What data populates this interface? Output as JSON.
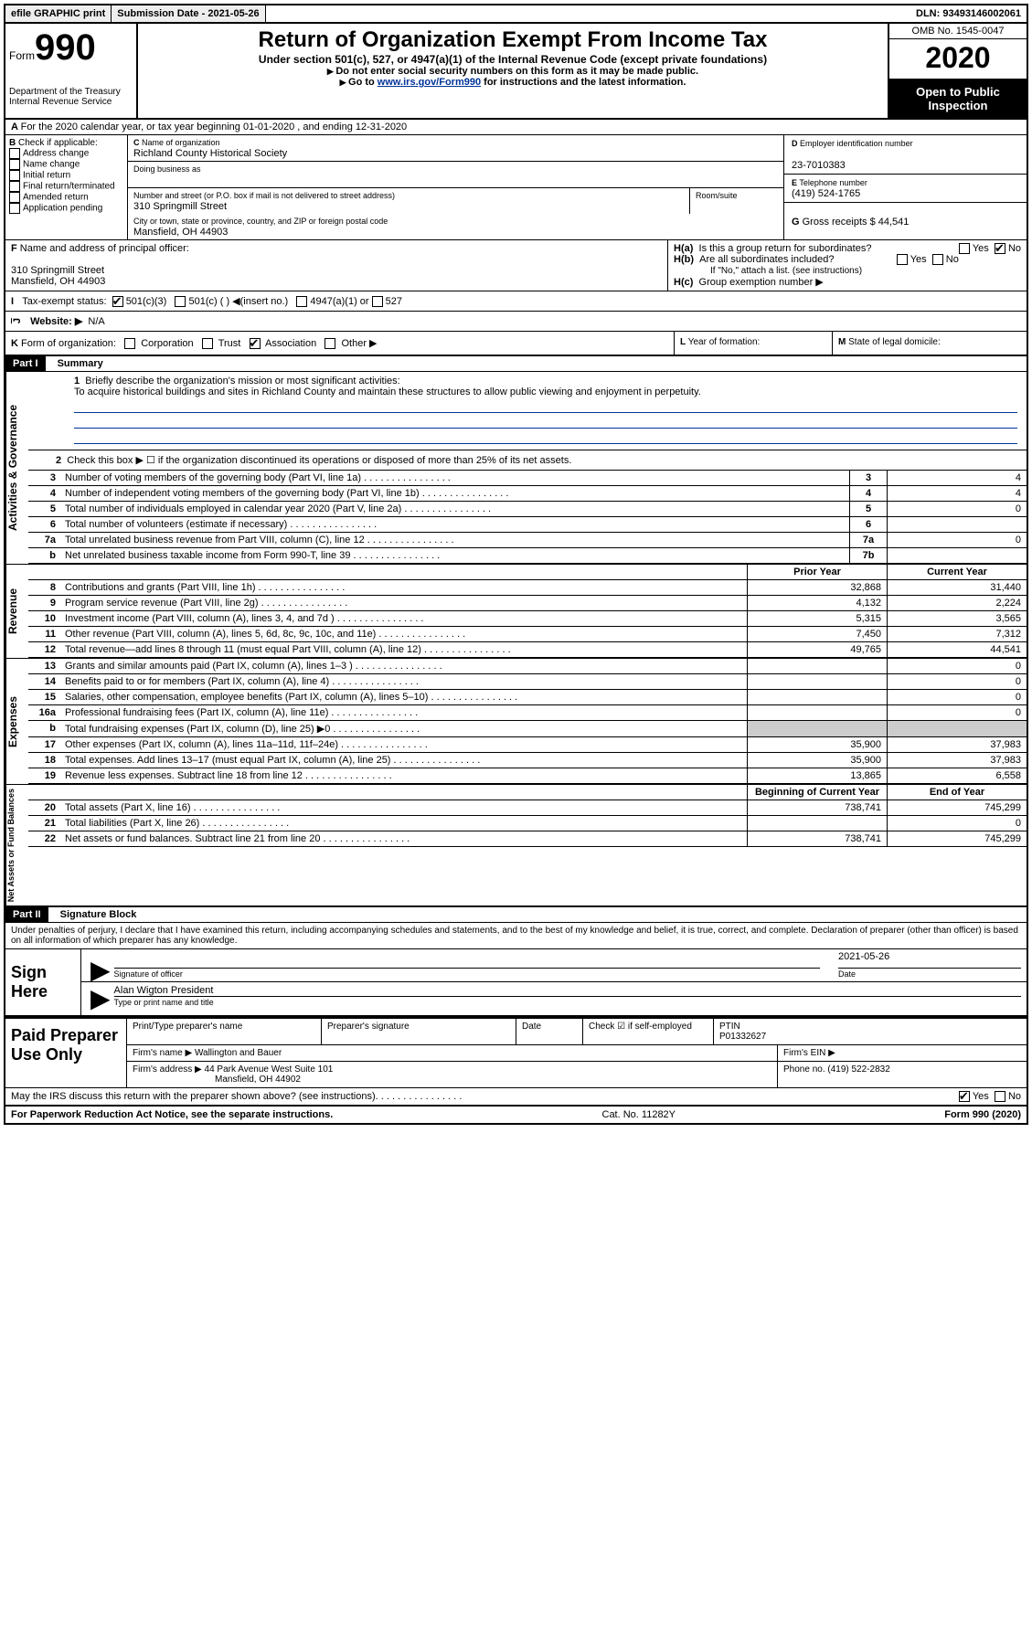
{
  "topbar": {
    "efile": "efile GRAPHIC print",
    "sub_label": "Submission Date - ",
    "sub_date": "2021-05-26",
    "dln_label": "DLN: ",
    "dln": "93493146002061"
  },
  "header": {
    "form_word": "Form",
    "form_num": "990",
    "dept": "Department of the Treasury\nInternal Revenue Service",
    "title": "Return of Organization Exempt From Income Tax",
    "subtitle": "Under section 501(c), 527, or 4947(a)(1) of the Internal Revenue Code (except private foundations)",
    "note1": "Do not enter social security numbers on this form as it may be made public.",
    "note2_pre": "Go to ",
    "note2_link": "www.irs.gov/Form990",
    "note2_post": " for instructions and the latest information.",
    "omb": "OMB No. 1545-0047",
    "year": "2020",
    "open": "Open to Public Inspection"
  },
  "rowA": {
    "text": "For the 2020 calendar year, or tax year beginning 01-01-2020    , and ending 12-31-2020"
  },
  "B": {
    "label": "Check if applicable:",
    "addr": "Address change",
    "name": "Name change",
    "init": "Initial return",
    "final": "Final return/terminated",
    "amend": "Amended return",
    "app": "Application pending"
  },
  "C": {
    "name_label": "Name of organization",
    "name": "Richland County Historical Society",
    "dba_label": "Doing business as",
    "street_label": "Number and street (or P.O. box if mail is not delivered to street address)",
    "street": "310 Springmill Street",
    "room_label": "Room/suite",
    "city_label": "City or town, state or province, country, and ZIP or foreign postal code",
    "city": "Mansfield, OH  44903"
  },
  "D": {
    "ein_label": "Employer identification number",
    "ein": "23-7010383",
    "tel_label": "Telephone number",
    "tel": "(419) 524-1765",
    "gross_label": "Gross receipts $ ",
    "gross": "44,541"
  },
  "F": {
    "label": "Name and address of principal officer:",
    "addr1": "310 Springmill Street",
    "addr2": "Mansfield, OH  44903"
  },
  "H": {
    "a_label": "Is this a group return for subordinates?",
    "b_label": "Are all subordinates included?",
    "b_note": "If \"No,\" attach a list. (see instructions)",
    "c_label": "Group exemption number ▶",
    "yes": "Yes",
    "no": "No"
  },
  "I": {
    "label": "Tax-exempt status:",
    "o1": "501(c)(3)",
    "o2": "501(c) (  ) ◀(insert no.)",
    "o3": "4947(a)(1) or",
    "o4": "527"
  },
  "J": {
    "label": "Website: ▶",
    "val": "N/A"
  },
  "K": {
    "label": "Form of organization:",
    "corp": "Corporation",
    "trust": "Trust",
    "assoc": "Association",
    "other": "Other ▶"
  },
  "L": {
    "label": "Year of formation:"
  },
  "M": {
    "label": "State of legal domicile:"
  },
  "part1": {
    "header": "Part I",
    "title": "Summary",
    "q1_label": "Briefly describe the organization's mission or most significant activities:",
    "q1_text": "To acquire historical buildings and sites in Richland County and maintain these structures to allow public viewing and enjoyment in perpetuity.",
    "q2": "Check this box ▶ ☐  if the organization discontinued its operations or disposed of more than 25% of its net assets.",
    "side_ag": "Activities & Governance",
    "side_rev": "Revenue",
    "side_exp": "Expenses",
    "side_na": "Net Assets or Fund Balances",
    "prior": "Prior Year",
    "current": "Current Year",
    "begin": "Beginning of Current Year",
    "end": "End of Year",
    "lines_gov": [
      {
        "n": "3",
        "d": "Number of voting members of the governing body (Part VI, line 1a)",
        "box": "3",
        "v": "4"
      },
      {
        "n": "4",
        "d": "Number of independent voting members of the governing body (Part VI, line 1b)",
        "box": "4",
        "v": "4"
      },
      {
        "n": "5",
        "d": "Total number of individuals employed in calendar year 2020 (Part V, line 2a)",
        "box": "5",
        "v": "0"
      },
      {
        "n": "6",
        "d": "Total number of volunteers (estimate if necessary)",
        "box": "6",
        "v": ""
      },
      {
        "n": "7a",
        "d": "Total unrelated business revenue from Part VIII, column (C), line 12",
        "box": "7a",
        "v": "0"
      },
      {
        "n": "b",
        "d": "Net unrelated business taxable income from Form 990-T, line 39",
        "box": "7b",
        "v": ""
      }
    ],
    "lines_rev": [
      {
        "n": "8",
        "d": "Contributions and grants (Part VIII, line 1h)",
        "p": "32,868",
        "c": "31,440"
      },
      {
        "n": "9",
        "d": "Program service revenue (Part VIII, line 2g)",
        "p": "4,132",
        "c": "2,224"
      },
      {
        "n": "10",
        "d": "Investment income (Part VIII, column (A), lines 3, 4, and 7d )",
        "p": "5,315",
        "c": "3,565"
      },
      {
        "n": "11",
        "d": "Other revenue (Part VIII, column (A), lines 5, 6d, 8c, 9c, 10c, and 11e)",
        "p": "7,450",
        "c": "7,312"
      },
      {
        "n": "12",
        "d": "Total revenue—add lines 8 through 11 (must equal Part VIII, column (A), line 12)",
        "p": "49,765",
        "c": "44,541"
      }
    ],
    "lines_exp": [
      {
        "n": "13",
        "d": "Grants and similar amounts paid (Part IX, column (A), lines 1–3 )",
        "p": "",
        "c": "0"
      },
      {
        "n": "14",
        "d": "Benefits paid to or for members (Part IX, column (A), line 4)",
        "p": "",
        "c": "0"
      },
      {
        "n": "15",
        "d": "Salaries, other compensation, employee benefits (Part IX, column (A), lines 5–10)",
        "p": "",
        "c": "0"
      },
      {
        "n": "16a",
        "d": "Professional fundraising fees (Part IX, column (A), line 11e)",
        "p": "",
        "c": "0"
      },
      {
        "n": "b",
        "d": "Total fundraising expenses (Part IX, column (D), line 25) ▶0",
        "p": "__shade__",
        "c": "__shade__"
      },
      {
        "n": "17",
        "d": "Other expenses (Part IX, column (A), lines 11a–11d, 11f–24e)",
        "p": "35,900",
        "c": "37,983"
      },
      {
        "n": "18",
        "d": "Total expenses. Add lines 13–17 (must equal Part IX, column (A), line 25)",
        "p": "35,900",
        "c": "37,983"
      },
      {
        "n": "19",
        "d": "Revenue less expenses. Subtract line 18 from line 12",
        "p": "13,865",
        "c": "6,558"
      }
    ],
    "lines_na": [
      {
        "n": "20",
        "d": "Total assets (Part X, line 16)",
        "p": "738,741",
        "c": "745,299"
      },
      {
        "n": "21",
        "d": "Total liabilities (Part X, line 26)",
        "p": "",
        "c": "0"
      },
      {
        "n": "22",
        "d": "Net assets or fund balances. Subtract line 21 from line 20",
        "p": "738,741",
        "c": "745,299"
      }
    ]
  },
  "part2": {
    "header": "Part II",
    "title": "Signature Block",
    "decl": "Under penalties of perjury, I declare that I have examined this return, including accompanying schedules and statements, and to the best of my knowledge and belief, it is true, correct, and complete. Declaration of preparer (other than officer) is based on all information of which preparer has any knowledge.",
    "sign_here": "Sign Here",
    "sig_officer": "Signature of officer",
    "date_label": "Date",
    "date": "2021-05-26",
    "name_title": "Alan Wigton President",
    "type_label": "Type or print name and title"
  },
  "paid": {
    "label": "Paid Preparer Use Only",
    "h_name": "Print/Type preparer's name",
    "h_sig": "Preparer's signature",
    "h_date": "Date",
    "h_check": "Check ☑ if self-employed",
    "h_ptin": "PTIN",
    "ptin": "P01332627",
    "firm_name_label": "Firm's name    ▶ ",
    "firm_name": "Wallington and Bauer",
    "firm_ein_label": "Firm's EIN ▶",
    "firm_addr_label": "Firm's address ▶ ",
    "firm_addr": "44 Park Avenue West Suite 101",
    "firm_city": "Mansfield, OH  44902",
    "phone_label": "Phone no. ",
    "phone": "(419) 522-2832"
  },
  "discuss": {
    "text": "May the IRS discuss this return with the preparer shown above? (see instructions)",
    "yes": "Yes",
    "no": "No"
  },
  "footer": {
    "left": "For Paperwork Reduction Act Notice, see the separate instructions.",
    "mid": "Cat. No. 11282Y",
    "right": "Form 990 (2020)"
  }
}
